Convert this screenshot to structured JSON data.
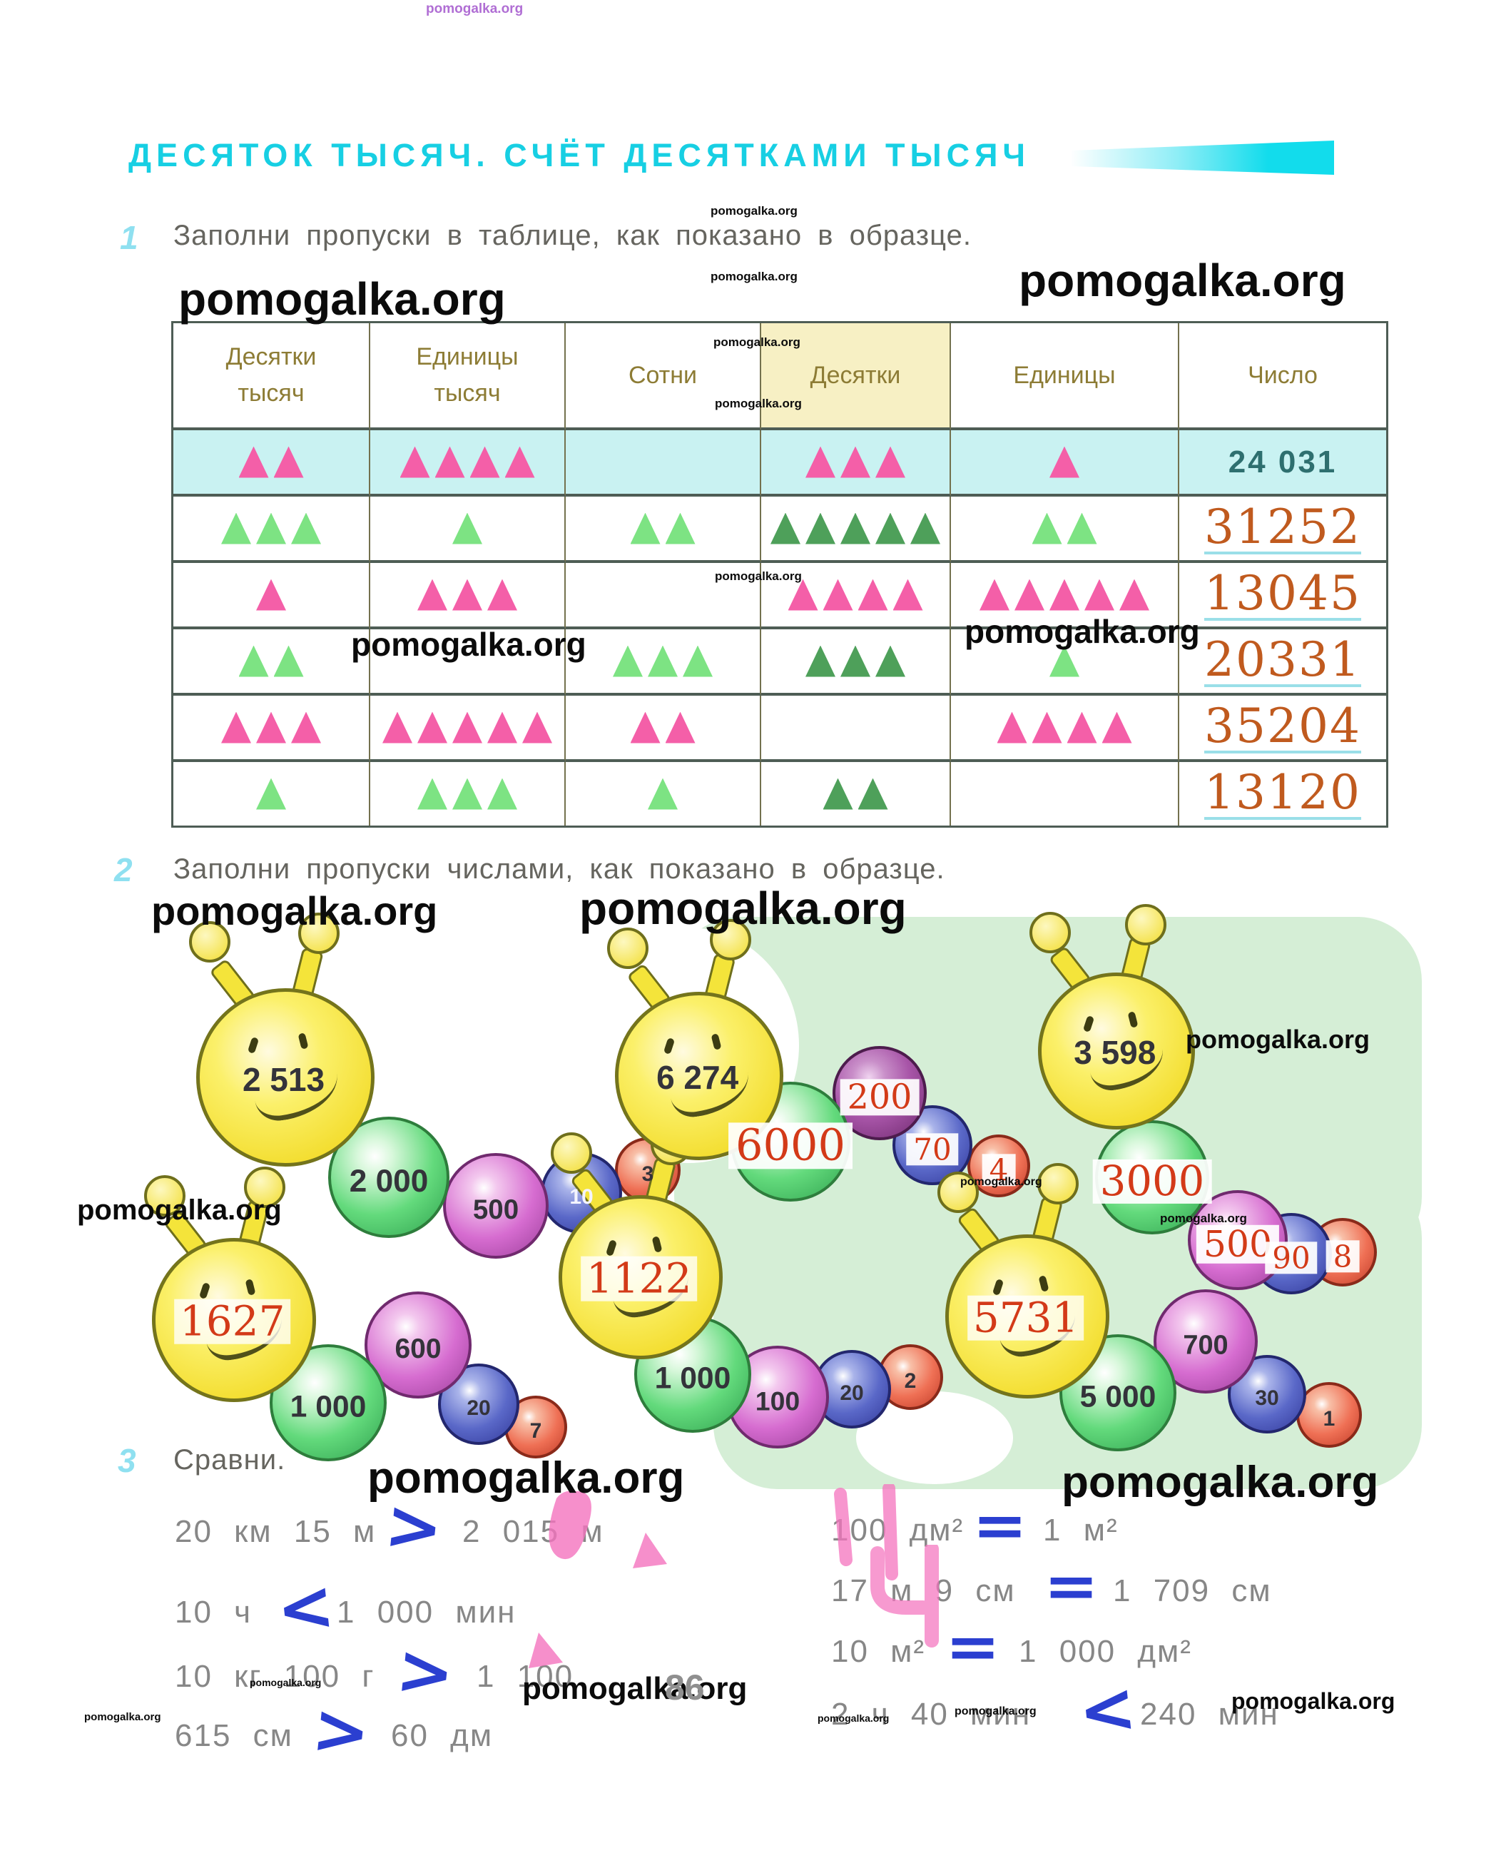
{
  "watermark": {
    "text": "pomogalka.org"
  },
  "page_number": "86",
  "title": "ДЕСЯТОК ТЫСЯЧ. СЧЁТ ДЕСЯТКАМИ ТЫСЯЧ",
  "tasks": [
    {
      "num": "1",
      "text": "Заполни пропуски в таблице, как показано в образце."
    },
    {
      "num": "2",
      "text": "Заполни пропуски числами, как показано в образце."
    },
    {
      "num": "3",
      "text": "Сравни."
    }
  ],
  "table": {
    "headers": [
      "Десятки тысяч",
      "Единицы тысяч",
      "Сотни",
      "Десятки",
      "Единицы",
      "Число"
    ],
    "rows": [
      {
        "triangles": [
          2,
          4,
          0,
          3,
          1
        ],
        "color": "pink",
        "number": "24 031",
        "number_style": "printed",
        "example": true
      },
      {
        "triangles": [
          3,
          1,
          2,
          5,
          2
        ],
        "color": "green",
        "number": "31252",
        "number_style": "handwritten",
        "example": false
      },
      {
        "triangles": [
          1,
          3,
          0,
          4,
          5
        ],
        "color": "pink",
        "number": "13045",
        "number_style": "handwritten",
        "example": false
      },
      {
        "triangles": [
          2,
          0,
          3,
          3,
          1
        ],
        "color": "green",
        "number": "20331",
        "number_style": "handwritten",
        "example": false
      },
      {
        "triangles": [
          3,
          5,
          2,
          0,
          4
        ],
        "color": "pink",
        "number": "35204",
        "number_style": "handwritten",
        "example": false
      },
      {
        "triangles": [
          1,
          3,
          1,
          2,
          0
        ],
        "color": "green",
        "number": "13120",
        "number_style": "handwritten",
        "example": false
      }
    ]
  },
  "caterpillars": [
    {
      "head": "2 513",
      "head_style": "printed",
      "balls": [
        {
          "value": "2 000",
          "style": "printed"
        },
        {
          "value": "500",
          "style": "printed"
        },
        {
          "value": "10",
          "style": "printed"
        },
        {
          "value": "3",
          "style": "printed"
        }
      ]
    },
    {
      "head": "6 274",
      "head_style": "printed",
      "balls": [
        {
          "value": "6000",
          "style": "handwritten"
        },
        {
          "value": "200",
          "style": "handwritten"
        },
        {
          "value": "70",
          "style": "handwritten"
        },
        {
          "value": "4",
          "style": "handwritten"
        }
      ]
    },
    {
      "head": "3 598",
      "head_style": "printed",
      "balls": [
        {
          "value": "3000",
          "style": "handwritten"
        },
        {
          "value": "500",
          "style": "handwritten"
        },
        {
          "value": "90",
          "style": "handwritten"
        },
        {
          "value": "8",
          "style": "handwritten"
        }
      ]
    },
    {
      "head": "1627",
      "head_style": "handwritten",
      "balls": [
        {
          "value": "1 000",
          "style": "printed"
        },
        {
          "value": "600",
          "style": "printed"
        },
        {
          "value": "20",
          "style": "printed"
        },
        {
          "value": "7",
          "style": "printed"
        }
      ]
    },
    {
      "head": "1122",
      "head_style": "handwritten",
      "balls": [
        {
          "value": "1 000",
          "style": "printed"
        },
        {
          "value": "100",
          "style": "printed"
        },
        {
          "value": "20",
          "style": "printed"
        },
        {
          "value": "2",
          "style": "printed"
        }
      ]
    },
    {
      "head": "5731",
      "head_style": "handwritten",
      "balls": [
        {
          "value": "5 000",
          "style": "printed"
        },
        {
          "value": "700",
          "style": "printed"
        },
        {
          "value": "30",
          "style": "printed"
        },
        {
          "value": "1",
          "style": "printed"
        }
      ]
    }
  ],
  "comparisons": {
    "left": [
      {
        "lhs": "20 км 15 м",
        "sign": ">",
        "rhs": "2 015 м"
      },
      {
        "lhs": "10 ч",
        "sign": "<",
        "rhs": "1 000 мин"
      },
      {
        "lhs": "10 кг 100 г",
        "sign": ">",
        "rhs": "1 100"
      },
      {
        "lhs": "615 см",
        "sign": ">",
        "rhs": "60 дм"
      }
    ],
    "right": [
      {
        "lhs": "100 дм²",
        "sign": "=",
        "rhs": "1 м²"
      },
      {
        "lhs": "17 м 9 см",
        "sign": "=",
        "rhs": "1 709 см"
      },
      {
        "lhs": "10 м²",
        "sign": "=",
        "rhs": "1 000 дм²"
      },
      {
        "lhs": "2 ч 40 мин",
        "sign": "<",
        "rhs": "240 мин"
      }
    ]
  },
  "colors": {
    "title_cyan": "#17cfe3",
    "triangle_pink": "#f45fa8",
    "triangle_green": "#7de383",
    "triangle_green_dark": "#4ea05a",
    "printed_number_teal": "#2e6f6f",
    "handwritten_orange": "#c05a1e",
    "handwritten_red": "#d33a18",
    "pen_blue": "#2b3fd0",
    "marker_pink": "#f473be",
    "example_row_bg": "#c9f2f2",
    "header_highlight_bg": "#f7f0c4",
    "green_wash_bg": "#d5eed6"
  }
}
